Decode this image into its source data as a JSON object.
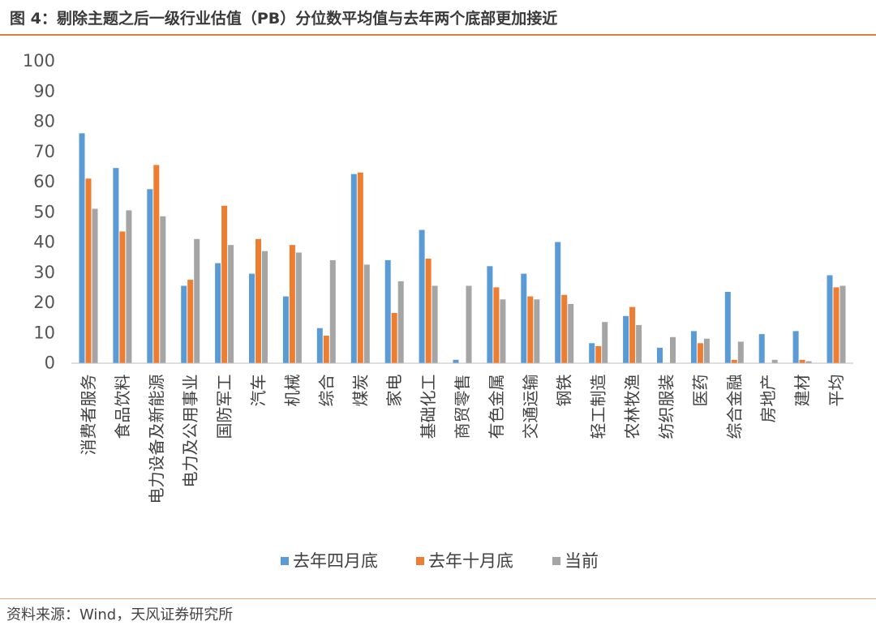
{
  "header": {
    "title": "图 4：剔除主题之后一级行业估值（PB）分位数平均值与去年两个底部更加接近"
  },
  "footer": {
    "source": "资料来源：Wind，天风证券研究所"
  },
  "chart_data": {
    "type": "bar",
    "title": "",
    "xlabel": "",
    "ylabel": "",
    "ylim": [
      0,
      100
    ],
    "yticks": [
      0,
      10,
      20,
      30,
      40,
      50,
      60,
      70,
      80,
      90,
      100
    ],
    "grid": false,
    "legend_position": "bottom",
    "categories": [
      "消费者服务",
      "食品饮料",
      "电力设备及新能源",
      "电力及公用事业",
      "国防军工",
      "汽车",
      "机械",
      "综合",
      "煤炭",
      "家电",
      "基础化工",
      "商贸零售",
      "有色金属",
      "交通运输",
      "钢铁",
      "轻工制造",
      "农林牧渔",
      "纺织服装",
      "医药",
      "综合金融",
      "房地产",
      "建材",
      "平均"
    ],
    "series": [
      {
        "name": "去年四月底",
        "color": "#5b9bd5",
        "values": [
          76,
          64.5,
          57.5,
          25.5,
          33,
          29.5,
          22,
          11.5,
          62.5,
          34,
          44,
          1,
          32,
          29.5,
          40,
          6.5,
          15.5,
          5,
          10.5,
          23.5,
          9.5,
          10.5,
          29
        ]
      },
      {
        "name": "去年十月底",
        "color": "#ed7d31",
        "values": [
          61,
          43.5,
          65.5,
          27.5,
          52,
          41,
          39,
          9,
          63,
          16.5,
          34.5,
          0,
          25,
          22,
          22.5,
          5.5,
          18.5,
          0,
          6.5,
          1,
          0,
          1,
          25
        ]
      },
      {
        "name": "当前",
        "color": "#a5a5a5",
        "values": [
          51,
          50.5,
          48.5,
          41,
          39,
          37,
          36.5,
          34,
          32.5,
          27,
          25.5,
          25.5,
          21,
          21,
          19.5,
          13.5,
          12.5,
          8.5,
          8,
          7,
          1,
          0.5,
          25.5
        ]
      }
    ]
  }
}
